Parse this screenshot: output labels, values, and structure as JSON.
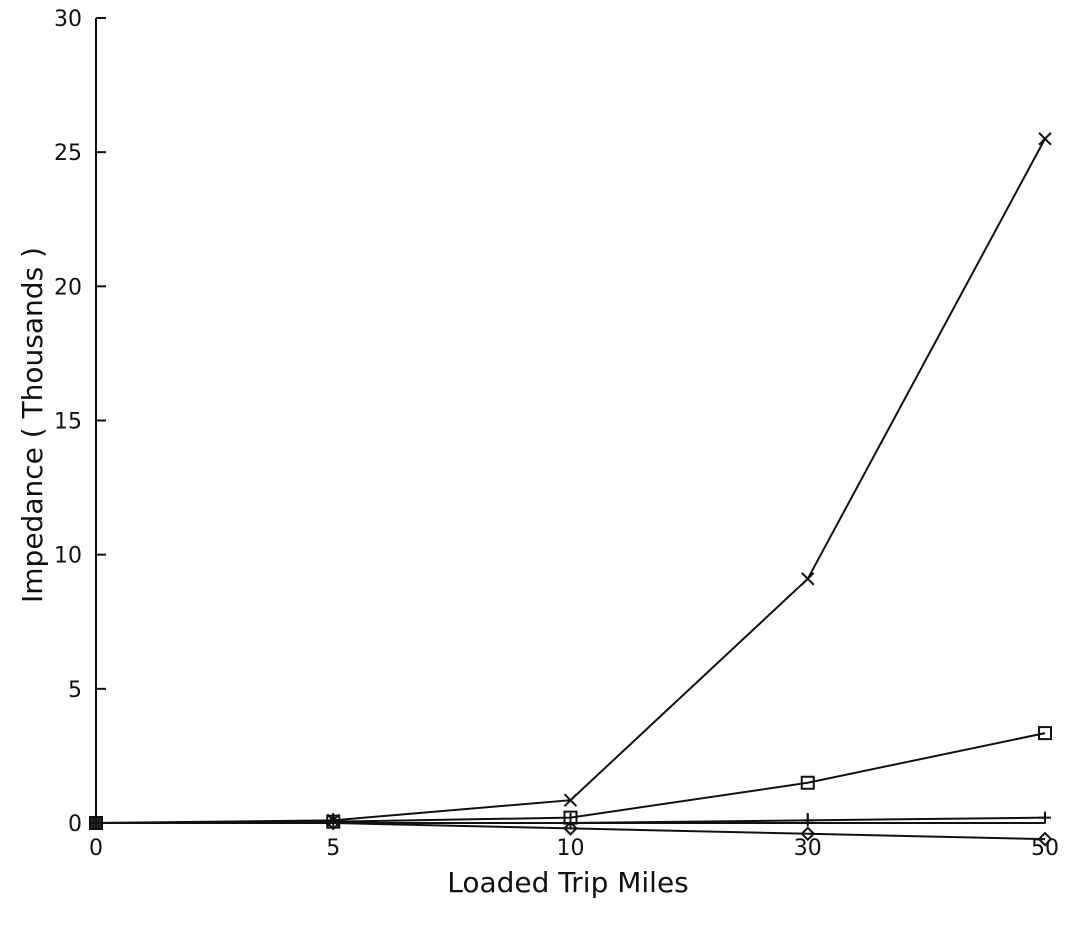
{
  "chart_data": {
    "type": "line",
    "title": "",
    "xlabel": "Loaded Trip Miles",
    "ylabel": "Impedance ( Thousands )",
    "categories": [
      "0",
      "5",
      "10",
      "30",
      "50"
    ],
    "ylim": [
      0,
      30
    ],
    "yticks": [
      0,
      5,
      10,
      15,
      20,
      25,
      30
    ],
    "grid": false,
    "series": [
      {
        "marker": "x",
        "values": [
          0,
          0.1,
          0.85,
          9.1,
          25.5
        ]
      },
      {
        "marker": "square",
        "values": [
          0,
          0.05,
          0.2,
          1.5,
          3.35
        ]
      },
      {
        "marker": "plus",
        "values": [
          0,
          0,
          0,
          0.1,
          0.2
        ]
      },
      {
        "marker": "diamond",
        "values": [
          0,
          0,
          -0.2,
          -0.4,
          -0.6
        ]
      }
    ]
  }
}
